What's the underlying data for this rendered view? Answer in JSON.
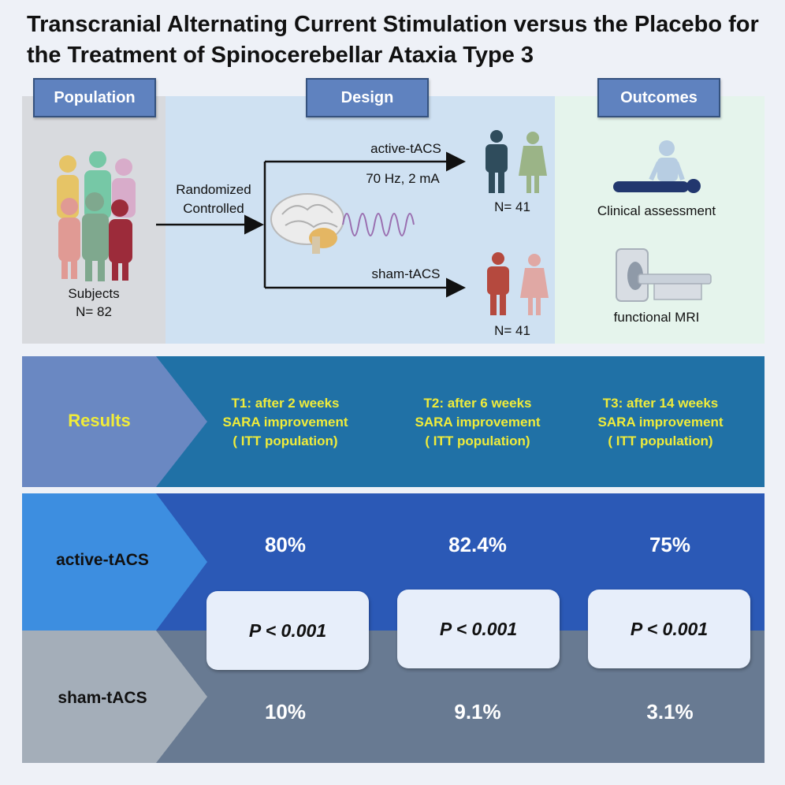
{
  "title": "Transcranial Alternating Current Stimulation versus the Placebo for the Treatment of Spinocerebellar Ataxia Type 3",
  "sections": {
    "population": "Population",
    "design": "Design",
    "outcomes": "Outcomes"
  },
  "population": {
    "label": "Subjects",
    "n": "N= 82"
  },
  "design": {
    "method_line1": "Randomized",
    "method_line2": "Controlled",
    "active_label": "active-tACS",
    "active_params": "70 Hz, 2 mA",
    "active_n": "N= 41",
    "sham_label": "sham-tACS",
    "sham_n": "N= 41"
  },
  "outcomes": {
    "clinical": "Clinical assessment",
    "mri": "functional MRI"
  },
  "results": {
    "label": "Results",
    "timepoints": [
      {
        "line1": "T1: after 2 weeks",
        "line2": "SARA improvement",
        "line3": "( ITT population)"
      },
      {
        "line1": "T2: after 6 weeks",
        "line2": "SARA improvement",
        "line3": "( ITT population)"
      },
      {
        "line1": "T3: after 14 weeks",
        "line2": "SARA improvement",
        "line3": "( ITT population)"
      }
    ],
    "active": {
      "label": "active-tACS",
      "values": [
        "80%",
        "82.4%",
        "75%"
      ]
    },
    "pvalues": [
      "P < 0.001",
      "P < 0.001",
      "P < 0.001"
    ],
    "sham": {
      "label": "sham-tACS",
      "values": [
        "10%",
        "9.1%",
        "3.1%"
      ]
    }
  },
  "colors": {
    "header_box": "#5f82bf",
    "results_band": "#2071a6",
    "active_band": "#2b59b6",
    "sham_band": "#687a92",
    "highlight_text": "#f0ec3a"
  }
}
